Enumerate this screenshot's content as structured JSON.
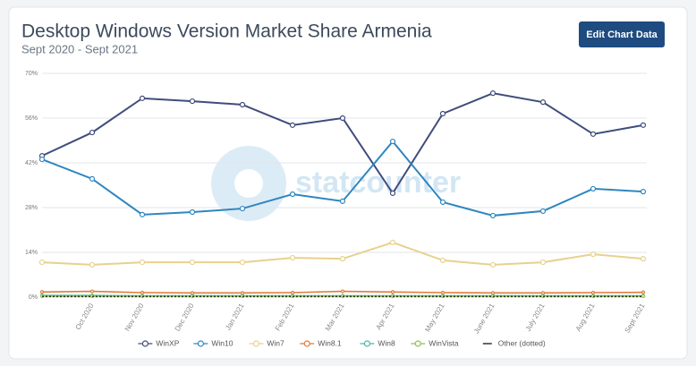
{
  "chart_data": {
    "type": "line",
    "title": "Desktop Windows Version Market Share Armenia",
    "subtitle": "Sept 2020 - Sept 2021",
    "button": "Edit Chart Data",
    "watermark": "statcounter",
    "categories": [
      null,
      "Oct 2020",
      "Nov 2020",
      "Dec 2020",
      "Jan 2021",
      "Feb 2021",
      "Mar 2021",
      "Apr 2021",
      "May 2021",
      "June 2021",
      "July 2021",
      "Aug 2021",
      "Sept 2021"
    ],
    "ylim": [
      0,
      70
    ],
    "yticks": [
      {
        "value": 0,
        "label": "0%"
      },
      {
        "value": 14,
        "label": "14%"
      },
      {
        "value": 28,
        "label": "28%"
      },
      {
        "value": 42,
        "label": "42%"
      },
      {
        "value": 56,
        "label": "56%"
      },
      {
        "value": 70,
        "label": "70%"
      }
    ],
    "grid": true,
    "legend": "bottom",
    "series": [
      {
        "name": "WinXP",
        "color": "#404c7c",
        "values": [
          44.2,
          51.5,
          62.2,
          61.3,
          60.2,
          53.8,
          56.0,
          32.5,
          57.4,
          63.8,
          61.0,
          51.0,
          53.8
        ]
      },
      {
        "name": "Win10",
        "color": "#2f86c0",
        "values": [
          43.1,
          37.0,
          25.8,
          26.6,
          27.7,
          32.2,
          30.0,
          48.7,
          29.7,
          25.5,
          26.9,
          33.9,
          33.0
        ]
      },
      {
        "name": "Win7",
        "color": "#e8d18d",
        "values": [
          10.9,
          10.1,
          10.9,
          10.9,
          10.9,
          12.3,
          12.0,
          17.1,
          11.5,
          10.1,
          10.9,
          13.4,
          12.0
        ]
      },
      {
        "name": "Win8.1",
        "color": "#e07b39",
        "values": [
          1.6,
          1.8,
          1.4,
          1.3,
          1.3,
          1.4,
          1.8,
          1.6,
          1.4,
          1.3,
          1.3,
          1.4,
          1.5
        ]
      },
      {
        "name": "Win8",
        "color": "#4bb6a4",
        "values": [
          0.5,
          0.5,
          0.4,
          0.4,
          0.4,
          0.4,
          0.4,
          0.4,
          0.4,
          0.4,
          0.4,
          0.4,
          0.4
        ]
      },
      {
        "name": "WinVista",
        "color": "#8bc34a",
        "values": [
          0.3,
          0.3,
          0.3,
          0.3,
          0.3,
          0.3,
          0.3,
          0.3,
          0.3,
          0.3,
          0.3,
          0.3,
          0.3
        ]
      },
      {
        "name": "Other (dotted)",
        "color": "#333333",
        "line_style": "dotted",
        "values": [
          0.2,
          0.2,
          0.2,
          0.2,
          0.2,
          0.2,
          0.2,
          0.2,
          0.2,
          0.2,
          0.2,
          0.2,
          0.2
        ]
      }
    ]
  }
}
